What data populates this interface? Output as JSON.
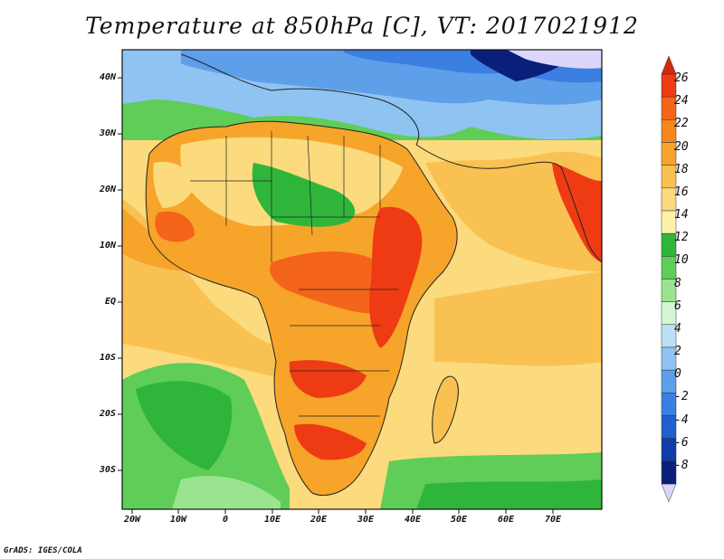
{
  "title": "Temperature at 850hPa [C], VT: 2017021912",
  "credit": "GrADS: IGES/COLA",
  "axes": {
    "y_labels": [
      "40N",
      "30N",
      "20N",
      "10N",
      "EQ",
      "10S",
      "20S",
      "30S"
    ],
    "x_labels": [
      "20W",
      "10W",
      "0",
      "10E",
      "20E",
      "30E",
      "40E",
      "50E",
      "60E",
      "70E"
    ]
  },
  "colorbar": {
    "labels": [
      "26",
      "24",
      "22",
      "20",
      "18",
      "16",
      "14",
      "12",
      "10",
      "8",
      "6",
      "4",
      "2",
      "0",
      "-2",
      "-4",
      "-6",
      "-8"
    ],
    "colors": [
      "#ee3b14",
      "#f4641a",
      "#f6861c",
      "#f7a42a",
      "#f9c152",
      "#fbdb7d",
      "#fdf2a8",
      "#2fb53a",
      "#5fcd58",
      "#9ae48f",
      "#d4f6d6",
      "#bde0f6",
      "#8fc3f1",
      "#5e9fe9",
      "#3a7fe1",
      "#1f5fcf",
      "#0f3ca8",
      "#0a1f7a"
    ],
    "top_arrow_color": "#d22a10",
    "bottom_arrow_color": "#dcd6fb"
  },
  "map_colors": {
    "ocean_warm": "#fbdb7d",
    "ocean_cool": "#5fcd58",
    "land_warm": "#f7a42a",
    "land_hot": "#ee3b14",
    "land_cool": "#8fc3f1",
    "arctic": "#0a1f7a"
  }
}
